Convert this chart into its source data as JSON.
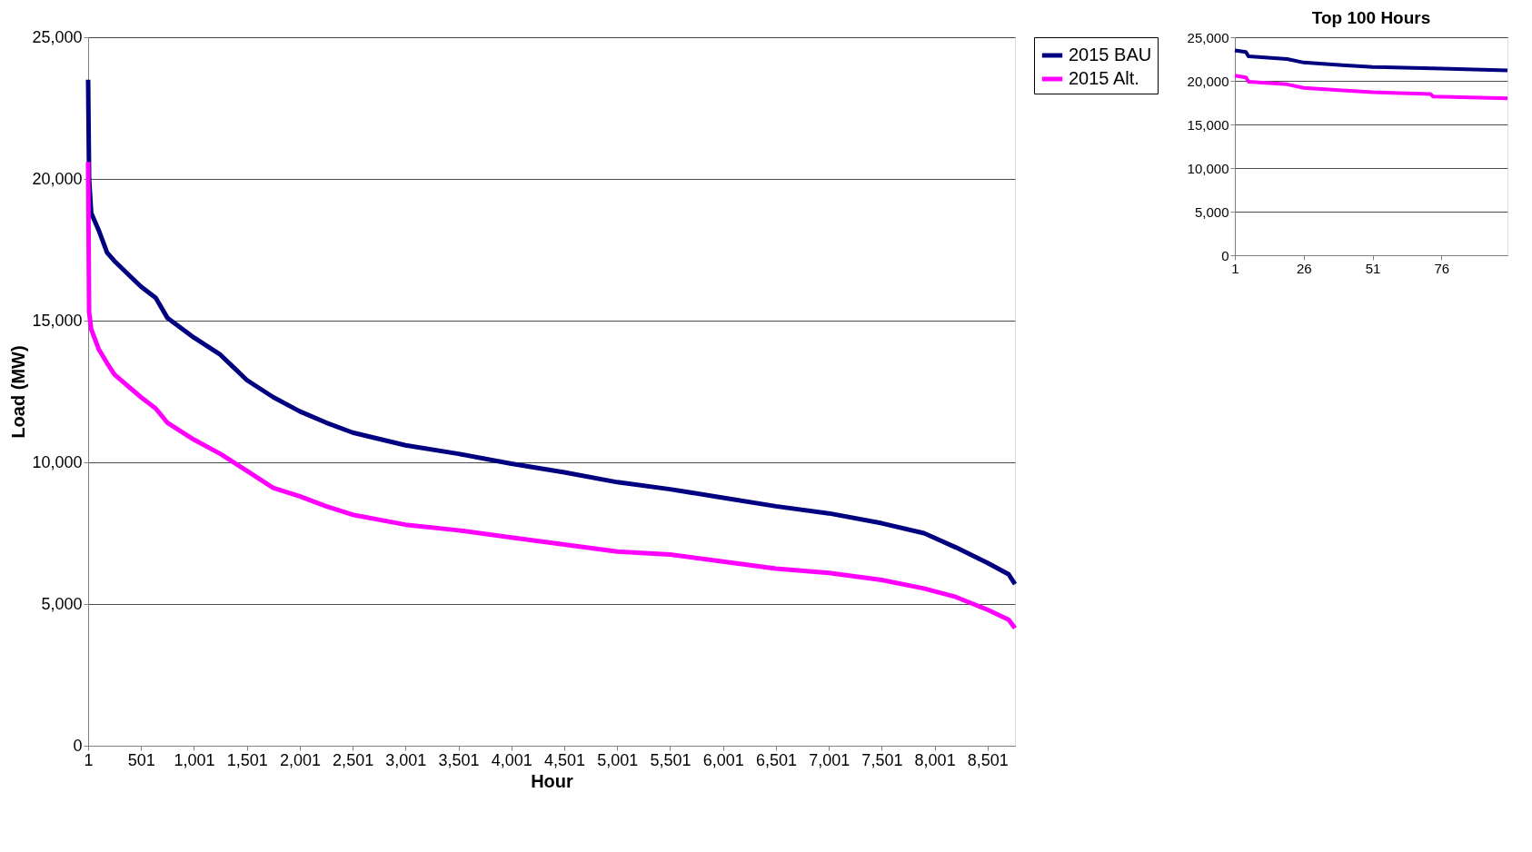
{
  "chart_data": [
    {
      "type": "line",
      "xlabel": "Hour",
      "ylabel": "Load (MW)",
      "xlim": [
        1,
        8760
      ],
      "ylim": [
        0,
        25000
      ],
      "xticks": [
        1,
        501,
        {
          "value": 1001,
          "label": "1,001"
        },
        {
          "value": 1501,
          "label": "1,501"
        },
        {
          "value": 2001,
          "label": "2,001"
        },
        {
          "value": 2501,
          "label": "2,501"
        },
        {
          "value": 3001,
          "label": "3,001"
        },
        {
          "value": 3501,
          "label": "3,501"
        },
        {
          "value": 4001,
          "label": "4,001"
        },
        {
          "value": 4501,
          "label": "4,501"
        },
        {
          "value": 5001,
          "label": "5,001"
        },
        {
          "value": 5501,
          "label": "5,501"
        },
        {
          "value": 6001,
          "label": "6,001"
        },
        {
          "value": 6501,
          "label": "6,501"
        },
        {
          "value": 7001,
          "label": "7,001"
        },
        {
          "value": 7501,
          "label": "7,501"
        },
        {
          "value": 8001,
          "label": "8,001"
        },
        {
          "value": 8501,
          "label": "8,501"
        }
      ],
      "yticks": [
        0,
        {
          "value": 5000,
          "label": "5,000"
        },
        {
          "value": 10000,
          "label": "10,000"
        },
        {
          "value": 15000,
          "label": "15,000"
        },
        {
          "value": 20000,
          "label": "20,000"
        },
        {
          "value": 25000,
          "label": "25,000"
        }
      ],
      "grid": "y",
      "legend": "right",
      "marker": "none",
      "line_style": "solid",
      "x": [
        1,
        10,
        30,
        100,
        180,
        250,
        500,
        640,
        750,
        1001,
        1250,
        1501,
        1750,
        2001,
        2250,
        2501,
        3001,
        3501,
        4001,
        4501,
        5001,
        5501,
        6001,
        6501,
        7001,
        7501,
        7900,
        8200,
        8501,
        8700,
        8760
      ],
      "series": [
        {
          "name": "2015 BAU",
          "color": "#000080",
          "values": [
            23500,
            20000,
            18800,
            18200,
            17400,
            17100,
            16200,
            15800,
            15100,
            14400,
            13800,
            12900,
            12300,
            11800,
            11400,
            11050,
            10600,
            10300,
            9950,
            9650,
            9300,
            9050,
            8750,
            8450,
            8200,
            7850,
            7500,
            7000,
            6450,
            6050,
            5700
          ]
        },
        {
          "name": "2015 Alt.",
          "color": "#ff00ff",
          "values": [
            20600,
            15300,
            14700,
            14000,
            13500,
            13100,
            12300,
            11900,
            11400,
            10800,
            10300,
            9700,
            9100,
            8800,
            8450,
            8150,
            7800,
            7600,
            7350,
            7100,
            6850,
            6750,
            6500,
            6250,
            6100,
            5850,
            5550,
            5250,
            4800,
            4450,
            4150
          ]
        }
      ]
    },
    {
      "type": "line",
      "title": "Top 100 Hours",
      "xlim": [
        1,
        100
      ],
      "ylim": [
        0,
        25000
      ],
      "xticks": [
        1,
        26,
        51,
        76
      ],
      "yticks": [
        0,
        {
          "value": 5000,
          "label": "5,000"
        },
        {
          "value": 10000,
          "label": "10,000"
        },
        {
          "value": 15000,
          "label": "15,000"
        },
        {
          "value": 20000,
          "label": "20,000"
        },
        {
          "value": 25000,
          "label": "25,000"
        }
      ],
      "grid": "y",
      "marker": "none",
      "line_style": "solid",
      "series": [
        {
          "color": "#000080",
          "x": [
            1,
            5,
            6,
            20,
            26,
            40,
            51,
            76,
            100
          ],
          "values": [
            23500,
            23300,
            22800,
            22500,
            22100,
            21800,
            21600,
            21400,
            21200
          ]
        },
        {
          "color": "#ff00ff",
          "x": [
            1,
            5,
            6,
            20,
            26,
            40,
            51,
            72,
            73,
            100
          ],
          "values": [
            20600,
            20400,
            19900,
            19600,
            19200,
            18900,
            18700,
            18500,
            18200,
            18000
          ]
        }
      ]
    }
  ]
}
